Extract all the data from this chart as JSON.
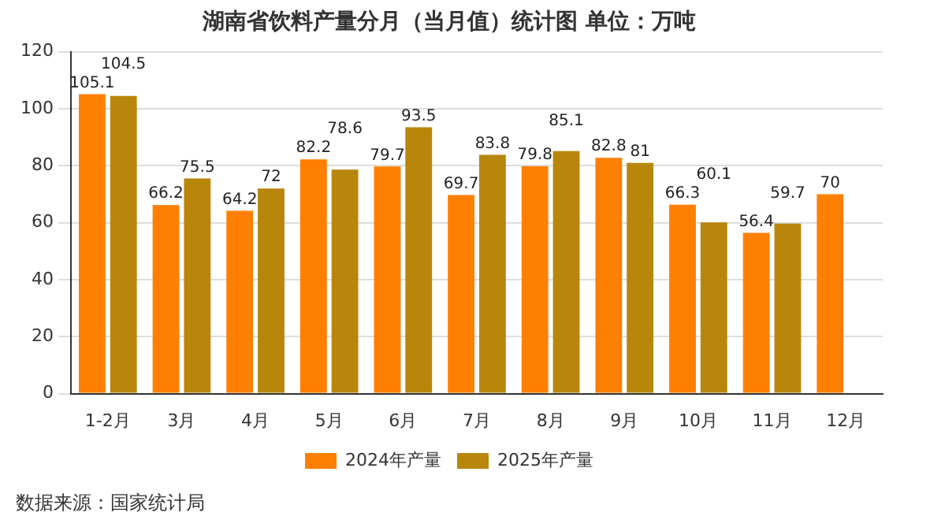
{
  "chart_data": {
    "type": "bar",
    "title": "湖南省饮料产量分月（当月值）统计图 单位：万吨",
    "categories": [
      "1-2月",
      "3月",
      "4月",
      "5月",
      "6月",
      "7月",
      "8月",
      "9月",
      "10月",
      "11月",
      "12月"
    ],
    "series": [
      {
        "name": "2024年产量",
        "color": "#ff8000",
        "values": [
          105.1,
          66.2,
          64.2,
          82.2,
          79.7,
          69.7,
          79.8,
          82.8,
          66.3,
          56.4,
          70
        ]
      },
      {
        "name": "2025年产量",
        "color": "#b8860b",
        "values": [
          104.5,
          75.5,
          72,
          78.6,
          93.5,
          83.8,
          85.1,
          81,
          60.1,
          59.7,
          null
        ]
      }
    ],
    "ylim": [
      0,
      120
    ],
    "yticks": [
      0,
      20,
      40,
      60,
      80,
      100,
      120
    ],
    "grid": "y",
    "legend": "bottom",
    "data_labels": true,
    "annotations": [
      "数据来源：国家统计局"
    ]
  }
}
